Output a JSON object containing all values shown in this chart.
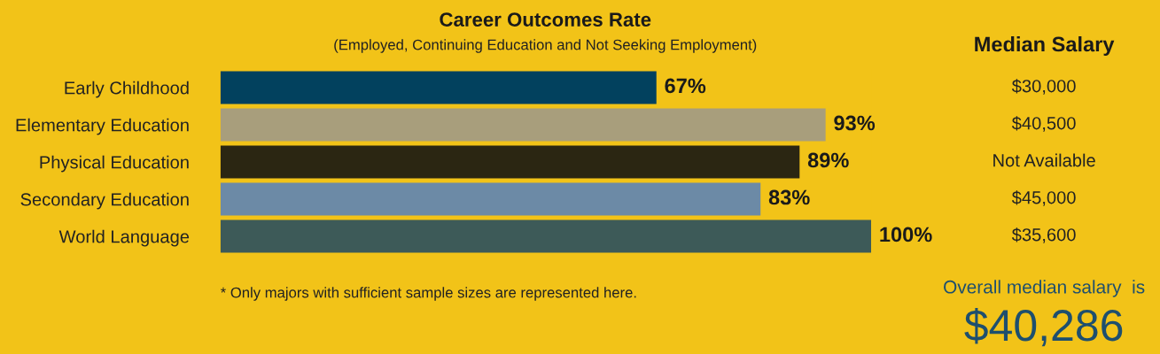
{
  "chart_data": {
    "type": "bar",
    "orientation": "horizontal",
    "title": "Career Outcomes Rate",
    "subtitle": "(Employed, Continuing Education and Not Seeking Employment)",
    "categories": [
      "Early Childhood",
      "Elementary Education",
      "Physical Education",
      "Secondary Education",
      "World Language"
    ],
    "values": [
      67,
      93,
      89,
      83,
      100
    ],
    "colors": [
      "#02415e",
      "#a89e7c",
      "#2b2612",
      "#6c8aa6",
      "#3d5a58"
    ],
    "value_labels": [
      "67%",
      "93%",
      "89%",
      "83%",
      "100%"
    ],
    "grid": false,
    "legend": false,
    "annotations": [
      "Median Salary",
      "$30,000",
      "$40,500",
      "Not Available",
      "$45,000",
      "$35,600",
      "* Only majors with sufficient sample sizes are represented here.",
      "Overall median salary  is",
      "$40,286"
    ]
  }
}
